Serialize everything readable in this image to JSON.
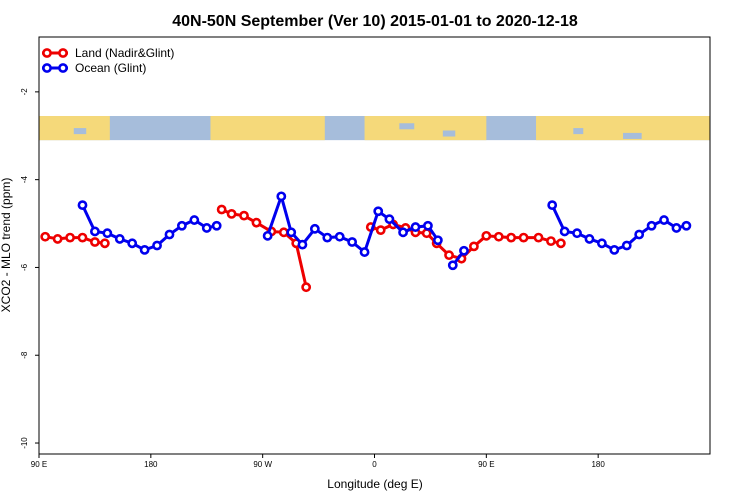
{
  "chart_data": {
    "type": "line",
    "title": "40N-50N September (Ver 10)   2015-01-01 to 2020-12-18",
    "xlabel": "Longitude (deg E)",
    "ylabel": "XCO2 - MLO trend (ppm)",
    "xlim": [
      90,
      630
    ],
    "ylim": [
      -10.25,
      -0.75
    ],
    "x_ticks": [
      {
        "value": 90,
        "label": "90 E"
      },
      {
        "value": 180,
        "label": "180"
      },
      {
        "value": 270,
        "label": "90 W"
      },
      {
        "value": 360,
        "label": "0"
      },
      {
        "value": 450,
        "label": "90 E"
      },
      {
        "value": 540,
        "label": "180"
      }
    ],
    "y_ticks": [
      {
        "value": -2,
        "label": "-2"
      },
      {
        "value": -4,
        "label": "-4"
      },
      {
        "value": -6,
        "label": "-6"
      },
      {
        "value": -8,
        "label": "-8"
      },
      {
        "value": -10,
        "label": "-10"
      }
    ],
    "map_band": {
      "ymin": -3.1,
      "ymax": -2.55
    },
    "series": [
      {
        "name": "Land (Nadir&Glint)",
        "color": "#ee0000",
        "segments": [
          [
            [
              95,
              -5.3
            ],
            [
              105,
              -5.35
            ],
            [
              115,
              -5.32
            ],
            [
              125,
              -5.32
            ],
            [
              135,
              -5.42
            ],
            [
              143,
              -5.45
            ]
          ],
          [
            [
              237,
              -4.68
            ],
            [
              245,
              -4.78
            ],
            [
              255,
              -4.82
            ],
            [
              265,
              -4.98
            ],
            [
              277,
              -5.18
            ],
            [
              287,
              -5.2
            ],
            [
              297,
              -5.45
            ],
            [
              305,
              -6.45
            ]
          ],
          [
            [
              357,
              -5.08
            ],
            [
              365,
              -5.15
            ],
            [
              375,
              -5.02
            ],
            [
              385,
              -5.1
            ],
            [
              393,
              -5.2
            ],
            [
              402,
              -5.22
            ],
            [
              410,
              -5.45
            ],
            [
              420,
              -5.72
            ],
            [
              430,
              -5.8
            ],
            [
              440,
              -5.52
            ],
            [
              450,
              -5.28
            ],
            [
              460,
              -5.3
            ],
            [
              470,
              -5.32
            ],
            [
              480,
              -5.32
            ],
            [
              492,
              -5.32
            ],
            [
              502,
              -5.4
            ],
            [
              510,
              -5.45
            ]
          ]
        ]
      },
      {
        "name": "Ocean (Glint)",
        "color": "#0000ee",
        "segments": [
          [
            [
              125,
              -4.58
            ],
            [
              135,
              -5.18
            ],
            [
              145,
              -5.22
            ],
            [
              155,
              -5.35
            ],
            [
              165,
              -5.45
            ],
            [
              175,
              -5.6
            ],
            [
              185,
              -5.5
            ],
            [
              195,
              -5.25
            ],
            [
              205,
              -5.05
            ],
            [
              215,
              -4.92
            ],
            [
              225,
              -5.1
            ],
            [
              233,
              -5.05
            ]
          ],
          [
            [
              274,
              -5.28
            ],
            [
              285,
              -4.38
            ],
            [
              293,
              -5.2
            ],
            [
              302,
              -5.48
            ],
            [
              312,
              -5.12
            ],
            [
              322,
              -5.32
            ],
            [
              332,
              -5.3
            ],
            [
              342,
              -5.42
            ],
            [
              352,
              -5.65
            ],
            [
              363,
              -4.72
            ],
            [
              372,
              -4.9
            ],
            [
              383,
              -5.2
            ],
            [
              393,
              -5.08
            ],
            [
              403,
              -5.05
            ],
            [
              411,
              -5.38
            ]
          ],
          [
            [
              423,
              -5.95
            ],
            [
              432,
              -5.62
            ]
          ],
          [
            [
              503,
              -4.58
            ],
            [
              513,
              -5.18
            ],
            [
              523,
              -5.22
            ],
            [
              533,
              -5.35
            ],
            [
              543,
              -5.45
            ],
            [
              553,
              -5.6
            ],
            [
              563,
              -5.5
            ],
            [
              573,
              -5.25
            ],
            [
              583,
              -5.05
            ],
            [
              593,
              -4.92
            ],
            [
              603,
              -5.1
            ],
            [
              611,
              -5.05
            ]
          ]
        ]
      }
    ]
  }
}
